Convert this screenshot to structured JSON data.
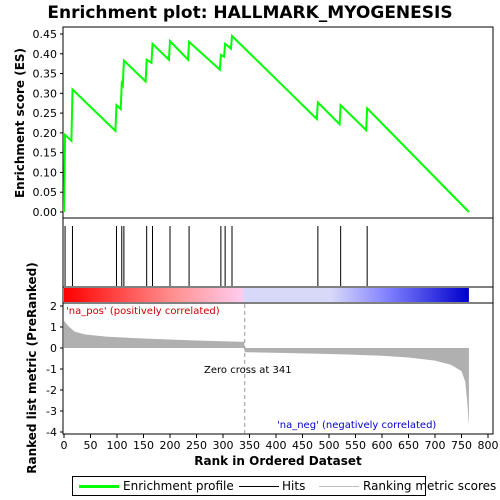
{
  "chart_data": {
    "title": "Enrichment plot: HALLMARK_MYOGENESIS",
    "type": "line",
    "x_axis": {
      "label": "Rank in Ordered Dataset",
      "range": [
        0,
        810
      ],
      "ticks": [
        0,
        50,
        100,
        150,
        200,
        250,
        300,
        350,
        400,
        450,
        500,
        550,
        600,
        650,
        700,
        750,
        800
      ]
    },
    "top_panel": {
      "ylabel": "Enrichment score (ES)",
      "ylim": [
        -0.01,
        0.455
      ],
      "ticks": [
        "0.00",
        "0.05",
        "0.10",
        "0.15",
        "0.20",
        "0.25",
        "0.30",
        "0.35",
        "0.40",
        "0.45"
      ],
      "series_name": "Enrichment profile",
      "color": "#00ff00",
      "points": [
        [
          0,
          0.0
        ],
        [
          2,
          0.195
        ],
        [
          14,
          0.18
        ],
        [
          16,
          0.31
        ],
        [
          97,
          0.205
        ],
        [
          99,
          0.27
        ],
        [
          107,
          0.26
        ],
        [
          109,
          0.325
        ],
        [
          111,
          0.32
        ],
        [
          113,
          0.383
        ],
        [
          154,
          0.33
        ],
        [
          156,
          0.385
        ],
        [
          165,
          0.377
        ],
        [
          167,
          0.425
        ],
        [
          198,
          0.385
        ],
        [
          200,
          0.432
        ],
        [
          234,
          0.385
        ],
        [
          236,
          0.43
        ],
        [
          294,
          0.36
        ],
        [
          296,
          0.397
        ],
        [
          302,
          0.393
        ],
        [
          304,
          0.425
        ],
        [
          315,
          0.413
        ],
        [
          317,
          0.445
        ],
        [
          477,
          0.235
        ],
        [
          479,
          0.277
        ],
        [
          520,
          0.222
        ],
        [
          522,
          0.27
        ],
        [
          570,
          0.207
        ],
        [
          572,
          0.262
        ],
        [
          764,
          0.0
        ]
      ]
    },
    "hits": [
      2,
      16,
      99,
      109,
      113,
      156,
      167,
      200,
      236,
      296,
      304,
      317,
      479,
      522,
      572
    ],
    "bottom_panel": {
      "ylabel": "Ranked list metric (PreRanked)",
      "ylim": [
        -4,
        2
      ],
      "ticks": [
        "-4",
        "-3",
        "-2",
        "-1",
        "0",
        "1",
        "2"
      ],
      "series_name": "Ranking metric scores",
      "color": "#b0b0b0",
      "points": [
        [
          0,
          1.3
        ],
        [
          8,
          1.05
        ],
        [
          20,
          0.78
        ],
        [
          40,
          0.64
        ],
        [
          80,
          0.54
        ],
        [
          150,
          0.45
        ],
        [
          250,
          0.36
        ],
        [
          340,
          0.29
        ],
        [
          341,
          -0.2
        ],
        [
          420,
          -0.24
        ],
        [
          520,
          -0.3
        ],
        [
          600,
          -0.37
        ],
        [
          650,
          -0.45
        ],
        [
          700,
          -0.6
        ],
        [
          730,
          -0.8
        ],
        [
          750,
          -1.1
        ],
        [
          757,
          -1.6
        ],
        [
          761,
          -2.6
        ],
        [
          764,
          -3.7
        ]
      ]
    },
    "zero_cross": 341,
    "colors": {
      "pos_gradient": [
        "#ff0000",
        "#ff9090",
        "#ffccee"
      ],
      "neg_gradient": [
        "#d8d8f8",
        "#8080ff",
        "#0000cc"
      ],
      "hits": "#000000",
      "legend_hits": "#000000",
      "legend_metric": "#c0c0c0"
    },
    "annotations": {
      "pos": "'na_pos' (positively correlated)",
      "neg": "'na_neg' (negatively correlated)",
      "zero": "Zero cross at 341"
    },
    "legend": {
      "placement": "bottom",
      "items": [
        "Enrichment profile",
        "Hits",
        "Ranking metric scores"
      ]
    }
  }
}
